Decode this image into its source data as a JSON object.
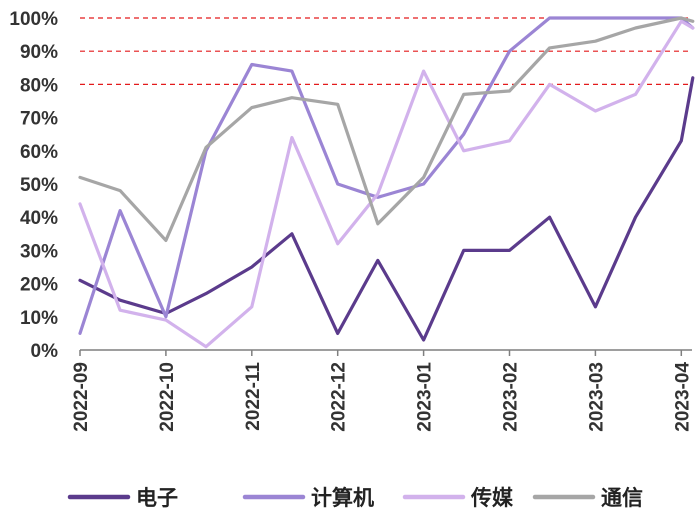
{
  "chart_data": {
    "type": "line",
    "title": "",
    "xlabel": "",
    "ylabel": "",
    "ylim": [
      0,
      100
    ],
    "y_tick_format": "percent",
    "y_ticks": [
      "0%",
      "10%",
      "20%",
      "30%",
      "40%",
      "50%",
      "60%",
      "70%",
      "80%",
      "90%",
      "100%"
    ],
    "x_ticks": [
      "2022-09",
      "2022-10",
      "2022-11",
      "2022-12",
      "2023-01",
      "2023-02",
      "2023-03",
      "2023-04"
    ],
    "reference_lines": [
      80,
      90,
      100
    ],
    "reference_line_color": "#e31a1c",
    "legend_position": "bottom",
    "x": [
      "2022-09",
      "2022-09-15",
      "2022-10",
      "2022-10-15",
      "2022-11",
      "2022-11-15",
      "2022-12",
      "2022-12-15",
      "2023-01",
      "2023-01-15",
      "2023-02",
      "2023-02-15",
      "2023-03",
      "2023-03-15",
      "2023-04",
      "2023-04-05"
    ],
    "series": [
      {
        "name": "电子",
        "color": "#5b3b8c",
        "values": [
          21,
          15,
          11,
          17,
          25,
          35,
          5,
          27,
          3,
          30,
          30,
          40,
          13,
          40,
          63,
          82
        ]
      },
      {
        "name": "计算机",
        "color": "#9b85d4",
        "values": [
          5,
          42,
          10,
          60,
          86,
          84,
          50,
          46,
          50,
          65,
          90,
          100,
          100,
          100,
          100,
          97
        ]
      },
      {
        "name": "传媒",
        "color": "#d2b2ec",
        "values": [
          44,
          12,
          9,
          1,
          13,
          64,
          32,
          47,
          84,
          60,
          63,
          80,
          72,
          77,
          99,
          97
        ]
      },
      {
        "name": "通信",
        "color": "#a6a6a6",
        "values": [
          52,
          48,
          33,
          61,
          73,
          76,
          74,
          38,
          52,
          77,
          78,
          91,
          93,
          97,
          100,
          99
        ]
      }
    ]
  }
}
